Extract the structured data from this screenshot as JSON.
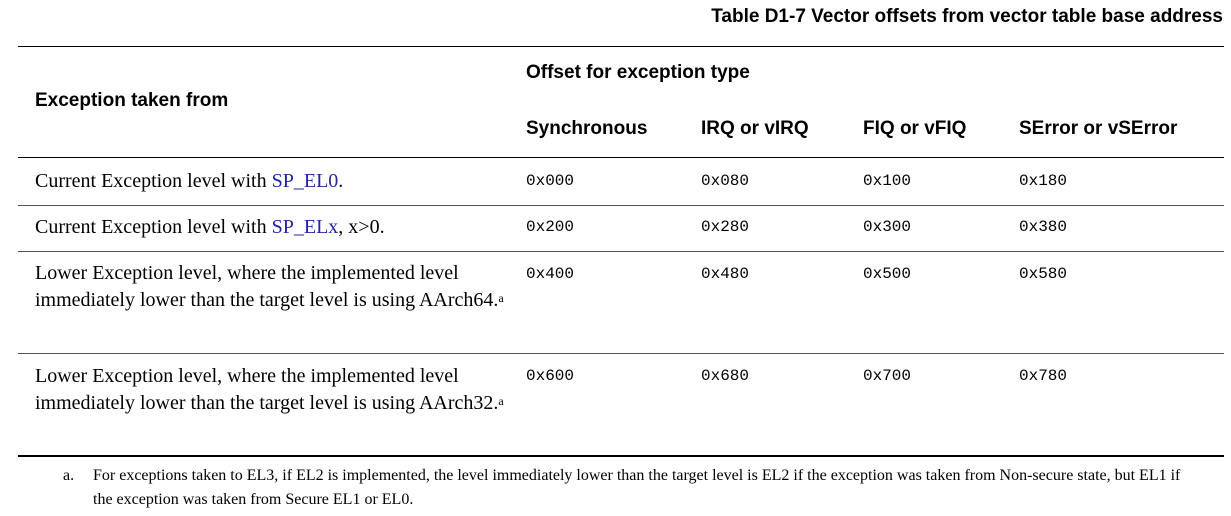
{
  "title": "Table D1-7 Vector offsets from vector table base address",
  "table": {
    "header": {
      "row_label": "Exception taken from",
      "group": "Offset for exception type",
      "columns": [
        "Synchronous",
        "IRQ or vIRQ",
        "FIQ or vFIQ",
        "SError or vSError"
      ]
    },
    "rows": [
      {
        "label": {
          "text": "Current Exception level with",
          "link": "SP_EL0",
          "suffix": "."
        },
        "offsets": [
          "0x000",
          "0x080",
          "0x100",
          "0x180"
        ]
      },
      {
        "label": {
          "text": "Current Exception level with",
          "link": "SP_ELx",
          "suffix": ", x>0."
        },
        "offsets": [
          "0x200",
          "0x280",
          "0x300",
          "0x380"
        ]
      },
      {
        "label": {
          "text": "Lower Exception level, where the implemented level immediately lower than the target level is using AArch64.",
          "note": "a"
        },
        "offsets": [
          "0x400",
          "0x480",
          "0x500",
          "0x580"
        ]
      },
      {
        "label": {
          "text": "Lower Exception level, where the implemented level immediately lower than the target level is using AArch32.",
          "note": "a"
        },
        "offsets": [
          "0x600",
          "0x680",
          "0x700",
          "0x780"
        ]
      }
    ]
  },
  "footnotes": [
    {
      "label": "a.",
      "text": "For exceptions taken to EL3, if EL2 is implemented, the level immediately lower than the target level is EL2 if the exception was taken from Non-secure state, but EL1 if the exception was taken from Secure EL1 or EL0."
    }
  ]
}
